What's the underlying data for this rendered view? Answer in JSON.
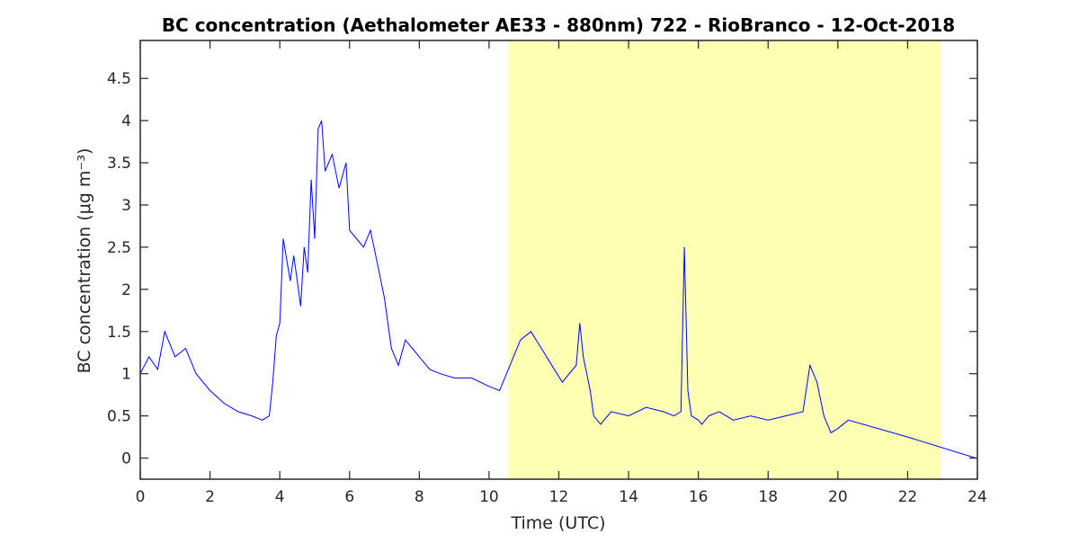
{
  "chart_data": {
    "type": "line",
    "title": "BC concentration (Aethalometer AE33 - 880nm) 722 - RioBranco - 12-Oct-2018",
    "xlabel": "Time (UTC)",
    "ylabel": "BC concentration (μg m⁻³)",
    "xlim": [
      0,
      24
    ],
    "ylim": [
      -0.25,
      4.95
    ],
    "xticks": [
      0,
      2,
      4,
      6,
      8,
      10,
      12,
      14,
      16,
      18,
      20,
      22,
      24
    ],
    "yticks": [
      0,
      0.5,
      1,
      1.5,
      2,
      2.5,
      3,
      3.5,
      4,
      4.5
    ],
    "ytick_labels": [
      "0",
      "0.5",
      "1",
      "1.5",
      "2",
      "2.5",
      "3",
      "3.5",
      "4",
      "4.5"
    ],
    "grid": false,
    "shaded_region": {
      "x_start": 10.55,
      "x_end": 22.95,
      "color": "#ffffb3"
    },
    "series": [
      {
        "color": "#0000ff",
        "x": [
          0,
          0.25,
          0.5,
          0.7,
          1.0,
          1.3,
          1.6,
          2.0,
          2.4,
          2.8,
          3.2,
          3.5,
          3.7,
          3.8,
          3.9,
          4.0,
          4.1,
          4.3,
          4.4,
          4.5,
          4.6,
          4.7,
          4.8,
          4.9,
          5.0,
          5.1,
          5.2,
          5.3,
          5.5,
          5.7,
          5.9,
          6.0,
          6.2,
          6.4,
          6.6,
          6.8,
          7.0,
          7.2,
          7.4,
          7.6,
          7.8,
          8.0,
          8.3,
          8.6,
          9.0,
          9.5,
          10.0,
          10.3,
          10.6,
          10.9,
          11.2,
          11.5,
          11.8,
          12.1,
          12.3,
          12.5,
          12.6,
          12.7,
          12.9,
          13.0,
          13.2,
          13.5,
          14.0,
          14.5,
          15.0,
          15.3,
          15.5,
          15.6,
          15.7,
          15.8,
          16.0,
          16.1,
          16.3,
          16.6,
          17.0,
          17.5,
          18.0,
          18.5,
          19.0,
          19.2,
          19.4,
          19.6,
          19.8,
          20.0,
          20.3,
          22.0,
          23.95
        ],
        "values": [
          1.0,
          1.2,
          1.05,
          1.5,
          1.2,
          1.3,
          1.0,
          0.8,
          0.65,
          0.55,
          0.5,
          0.45,
          0.5,
          0.9,
          1.45,
          1.6,
          2.6,
          2.1,
          2.4,
          2.1,
          1.8,
          2.5,
          2.2,
          3.3,
          2.6,
          3.9,
          4.0,
          3.4,
          3.6,
          3.2,
          3.5,
          2.7,
          2.6,
          2.5,
          2.7,
          2.3,
          1.9,
          1.3,
          1.1,
          1.4,
          1.3,
          1.2,
          1.05,
          1.0,
          0.95,
          0.95,
          0.85,
          0.8,
          1.1,
          1.4,
          1.5,
          1.3,
          1.1,
          0.9,
          1.0,
          1.1,
          1.6,
          1.2,
          0.8,
          0.5,
          0.4,
          0.55,
          0.5,
          0.6,
          0.55,
          0.5,
          0.55,
          2.5,
          0.8,
          0.5,
          0.45,
          0.4,
          0.5,
          0.55,
          0.45,
          0.5,
          0.45,
          0.5,
          0.55,
          1.1,
          0.9,
          0.5,
          0.3,
          0.35,
          0.45,
          0.25,
          0.0
        ]
      }
    ]
  }
}
